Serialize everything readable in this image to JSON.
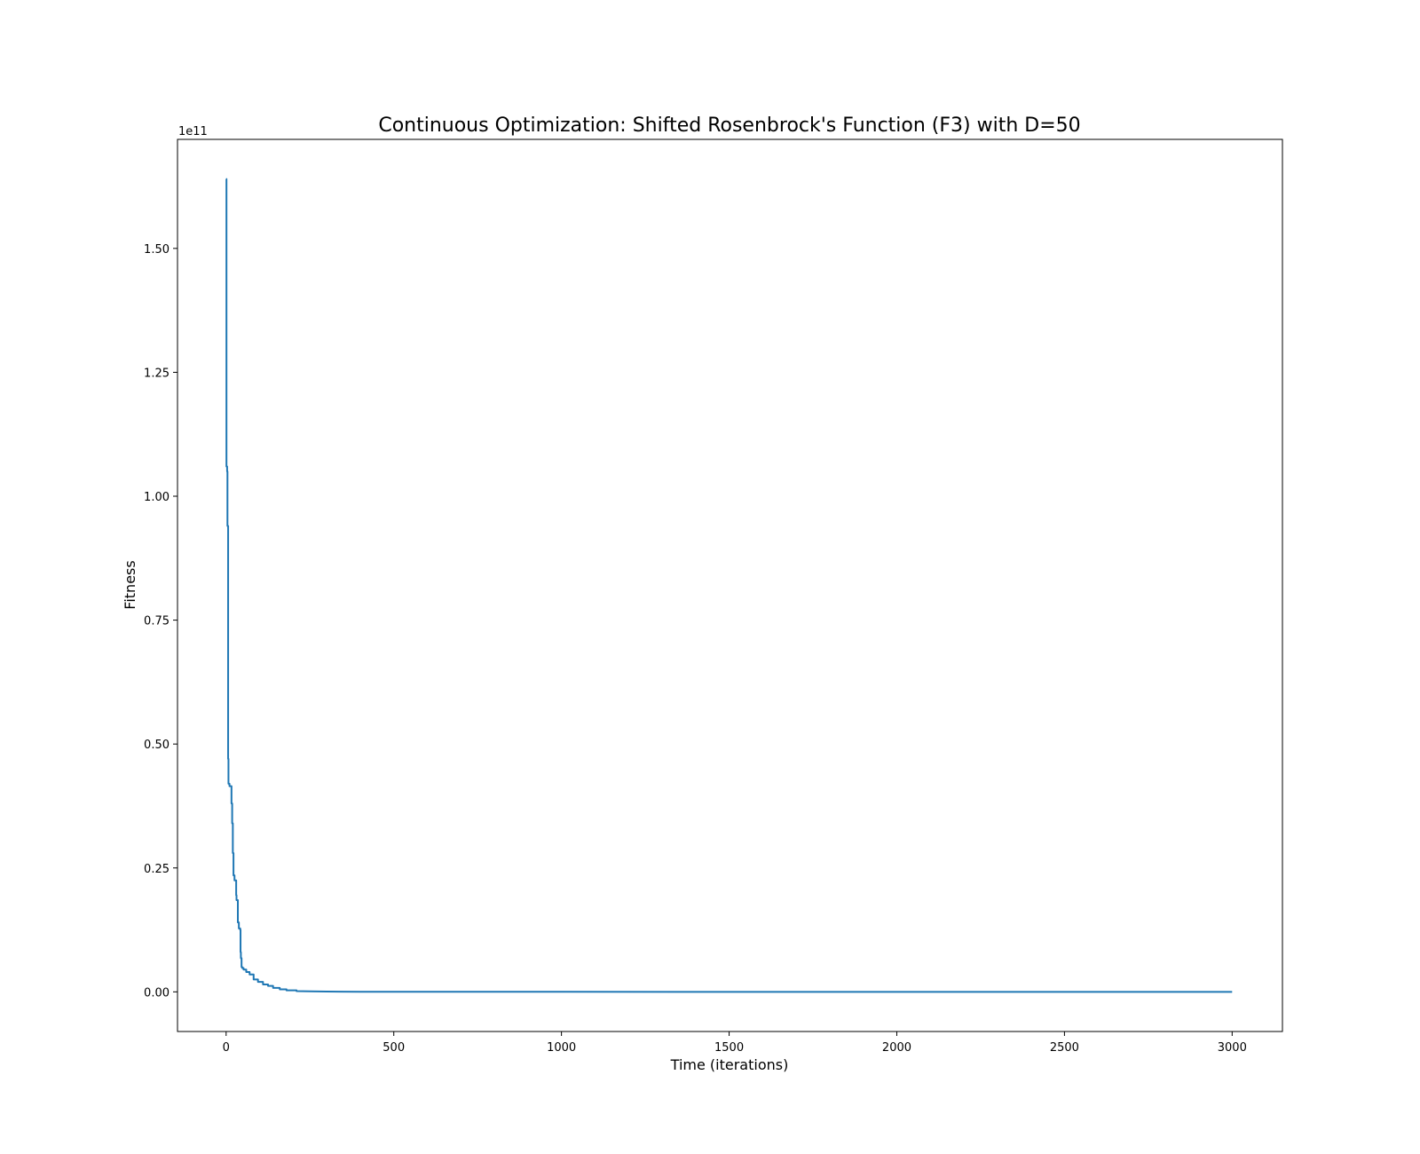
{
  "chart_data": {
    "type": "line",
    "title": "Continuous Optimization: Shifted Rosenbrock's Function (F3) with D=50",
    "xlabel": "Time (iterations)",
    "ylabel": "Fitness",
    "y_offset_label": "1e11",
    "xlim": [
      -145,
      3150
    ],
    "ylim": [
      -0.08,
      1.72
    ],
    "y_unit_multiplier": 100000000000.0,
    "x_ticks": [
      0,
      500,
      1000,
      1500,
      2000,
      2500,
      3000
    ],
    "x_tick_labels": [
      "0",
      "500",
      "1000",
      "1500",
      "2000",
      "2500",
      "3000"
    ],
    "y_ticks": [
      0.0,
      0.25,
      0.5,
      0.75,
      1.0,
      1.25,
      1.5
    ],
    "y_tick_labels": [
      "0.00",
      "0.25",
      "0.50",
      "0.75",
      "1.00",
      "1.25",
      "1.50"
    ],
    "grid": false,
    "line_color": "#1f77b4",
    "series": [
      {
        "x": [
          0,
          1,
          1,
          3,
          3,
          4,
          4,
          6,
          6,
          7,
          7,
          10,
          10,
          16,
          16,
          18,
          18,
          20,
          20,
          22,
          22,
          25,
          25,
          30,
          30,
          31,
          31,
          35,
          35,
          38,
          38,
          42,
          42,
          43,
          43,
          44,
          44,
          46,
          46,
          48,
          48,
          52,
          52,
          60,
          60,
          70,
          70,
          82,
          82,
          95,
          95,
          110,
          110,
          125,
          125,
          140,
          140,
          160,
          160,
          180,
          180,
          210,
          210,
          250,
          300,
          400,
          600,
          1000,
          2000,
          3000
        ],
        "y": [
          1.64,
          1.64,
          1.06,
          1.06,
          1.05,
          1.05,
          0.94,
          0.94,
          0.47,
          0.47,
          0.42,
          0.42,
          0.415,
          0.415,
          0.38,
          0.38,
          0.34,
          0.34,
          0.28,
          0.28,
          0.235,
          0.235,
          0.225,
          0.225,
          0.195,
          0.195,
          0.185,
          0.185,
          0.14,
          0.14,
          0.128,
          0.128,
          0.125,
          0.125,
          0.08,
          0.08,
          0.068,
          0.068,
          0.05,
          0.05,
          0.048,
          0.048,
          0.045,
          0.045,
          0.04,
          0.04,
          0.035,
          0.035,
          0.025,
          0.025,
          0.02,
          0.02,
          0.015,
          0.015,
          0.012,
          0.012,
          0.008,
          0.008,
          0.005,
          0.005,
          0.003,
          0.003,
          0.0015,
          0.001,
          0.0005,
          0.0002,
          0.0001,
          5e-05,
          2e-05,
          1e-05
        ]
      }
    ]
  }
}
